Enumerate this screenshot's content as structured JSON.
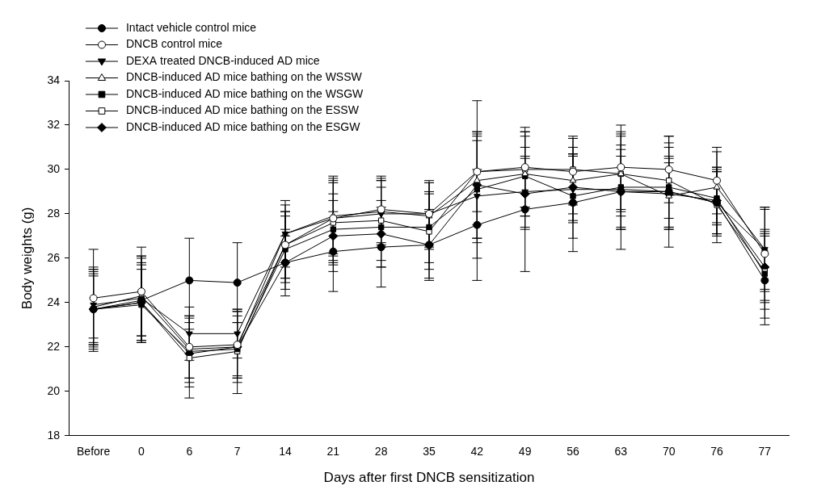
{
  "chart_data": {
    "type": "line",
    "x_label": "Days after first DNCB sensitization",
    "y_label": "Body weights (g)",
    "categories": [
      "Before",
      "0",
      "6",
      "7",
      "14",
      "21",
      "28",
      "35",
      "42",
      "49",
      "56",
      "63",
      "70",
      "76",
      "77"
    ],
    "ylim": [
      18,
      34
    ],
    "yticks": [
      18,
      20,
      22,
      24,
      26,
      28,
      30,
      32,
      34
    ],
    "grid": false,
    "legend": "top-left",
    "series": [
      {
        "name": "Intact vehicle control mice",
        "color": "#000000",
        "marker": "circle",
        "line_style": "solid",
        "values": [
          23.7,
          24.1,
          25.0,
          24.9,
          25.8,
          26.3,
          26.5,
          26.6,
          27.5,
          28.2,
          28.5,
          29.0,
          29.0,
          28.5,
          25.0
        ],
        "errors": [
          1.5,
          1.9,
          1.9,
          1.8,
          1.2,
          1.8,
          1.8,
          1.5,
          2.5,
          2.8,
          2.2,
          2.6,
          2.5,
          1.5,
          2.0
        ]
      },
      {
        "name": "DNCB control mice",
        "color": "#000000",
        "marker": "open_circle",
        "line_style": "solid",
        "values": [
          24.2,
          24.5,
          22.0,
          22.1,
          26.6,
          27.8,
          28.2,
          28.0,
          29.9,
          30.1,
          29.9,
          30.1,
          30.0,
          29.5,
          26.2
        ],
        "errors": [
          2.2,
          2.0,
          1.4,
          1.5,
          1.5,
          1.9,
          1.5,
          1.5,
          3.2,
          1.8,
          1.5,
          1.9,
          1.5,
          1.5,
          2.1
        ]
      },
      {
        "name": "DEXA treated DNCB-induced AD mice",
        "color": "#000000",
        "marker": "triangle_down",
        "line_style": "solid",
        "values": [
          23.9,
          24.2,
          22.6,
          22.6,
          27.1,
          27.8,
          28.0,
          28.0,
          28.8,
          29.0,
          29.1,
          29.1,
          29.0,
          28.5,
          26.4
        ],
        "errors": [
          1.5,
          1.9,
          1.2,
          1.1,
          1.5,
          1.7,
          1.5,
          1.4,
          2.8,
          1.6,
          1.5,
          1.8,
          1.6,
          1.4,
          1.9
        ]
      },
      {
        "name": "DNCB-induced AD mice bathing on the WSSW",
        "color": "#000000",
        "marker": "open_triangle",
        "line_style": "solid",
        "values": [
          23.8,
          24.3,
          21.9,
          22.0,
          27.1,
          27.9,
          28.1,
          27.9,
          29.5,
          29.8,
          29.5,
          29.8,
          28.8,
          29.2,
          26.4
        ],
        "errors": [
          1.7,
          1.8,
          1.5,
          1.6,
          1.3,
          1.7,
          1.5,
          1.5,
          2.0,
          1.9,
          1.5,
          1.9,
          1.5,
          1.6,
          1.8
        ]
      },
      {
        "name": "DNCB-induced AD mice bathing on the WSGW",
        "color": "#000000",
        "marker": "square",
        "line_style": "solid",
        "values": [
          23.7,
          23.9,
          21.8,
          21.9,
          26.4,
          27.3,
          27.4,
          27.4,
          29.1,
          29.7,
          28.8,
          29.2,
          29.2,
          28.7,
          25.3
        ],
        "errors": [
          1.6,
          1.6,
          1.6,
          1.2,
          1.5,
          1.6,
          1.8,
          1.6,
          2.2,
          1.8,
          1.9,
          1.9,
          1.8,
          1.2,
          2.0
        ]
      },
      {
        "name": "DNCB-induced AD mice bathing on the ESSW",
        "color": "#000000",
        "marker": "open_square",
        "line_style": "solid",
        "values": [
          23.7,
          24.0,
          21.5,
          21.8,
          26.6,
          27.6,
          27.7,
          27.2,
          29.9,
          30.0,
          30.0,
          29.8,
          29.5,
          28.4,
          25.4
        ],
        "errors": [
          1.8,
          1.7,
          1.8,
          1.9,
          1.5,
          1.8,
          1.8,
          1.7,
          1.8,
          1.7,
          1.5,
          1.7,
          1.7,
          1.7,
          1.7
        ]
      },
      {
        "name": "DNCB-induced AD mice bathing on the ESGW",
        "color": "#000000",
        "marker": "diamond",
        "line_style": "solid",
        "values": [
          23.7,
          24.0,
          21.7,
          22.0,
          25.8,
          27.0,
          27.1,
          26.6,
          29.3,
          28.9,
          29.2,
          29.0,
          28.9,
          28.6,
          25.6
        ],
        "errors": [
          1.9,
          1.8,
          1.1,
          1.4,
          1.5,
          1.6,
          1.5,
          1.6,
          2.4,
          1.6,
          1.5,
          1.6,
          1.6,
          1.5,
          1.6
        ]
      }
    ]
  }
}
